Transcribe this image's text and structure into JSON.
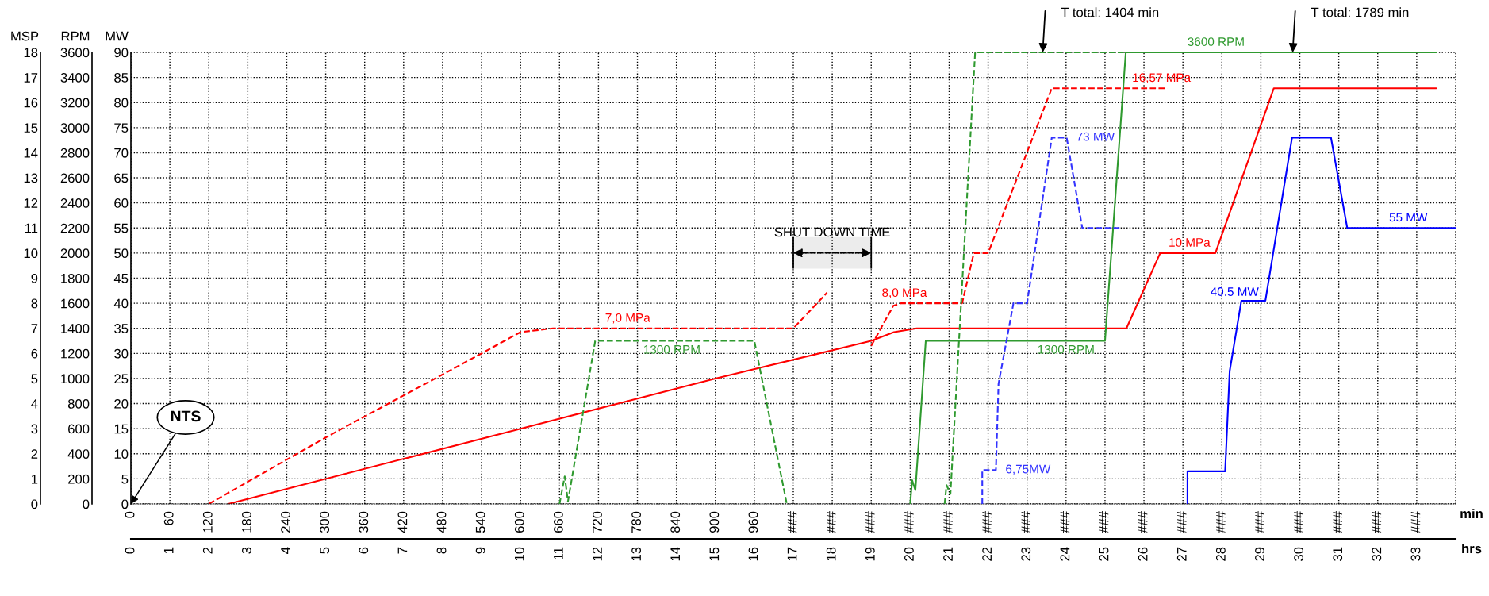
{
  "chart_data": {
    "type": "line",
    "xlabel": "min",
    "x2label": "hrs",
    "ylabel": "MSP",
    "y2label": "RPM",
    "y3label": "MW",
    "xlim": [
      0,
      2040
    ],
    "xticks": [
      0,
      60,
      120,
      180,
      240,
      300,
      360,
      420,
      480,
      540,
      600,
      660,
      720,
      780,
      840,
      900,
      960,
      {
        "value": 1020,
        "label": "###"
      },
      {
        "value": 1080,
        "label": "###"
      },
      {
        "value": 1140,
        "label": "###"
      },
      {
        "value": 1200,
        "label": "###"
      },
      {
        "value": 1260,
        "label": "###"
      },
      {
        "value": 1320,
        "label": "###"
      },
      {
        "value": 1380,
        "label": "###"
      },
      {
        "value": 1440,
        "label": "###"
      },
      {
        "value": 1500,
        "label": "###"
      },
      {
        "value": 1560,
        "label": "###"
      },
      {
        "value": 1620,
        "label": "###"
      },
      {
        "value": 1680,
        "label": "###"
      },
      {
        "value": 1740,
        "label": "###"
      },
      {
        "value": 1800,
        "label": "###"
      },
      {
        "value": 1860,
        "label": "###"
      },
      {
        "value": 1920,
        "label": "###"
      },
      {
        "value": 1980,
        "label": "###"
      },
      {
        "value": 2040,
        "label": null
      }
    ],
    "x2lim": [
      0,
      34
    ],
    "x2ticks": [
      0,
      1,
      2,
      3,
      4,
      5,
      6,
      7,
      8,
      9,
      10,
      11,
      12,
      13,
      14,
      15,
      16,
      17,
      18,
      19,
      20,
      21,
      22,
      23,
      24,
      25,
      26,
      27,
      28,
      29,
      30,
      31,
      32,
      33
    ],
    "ylim": [
      0,
      18
    ],
    "yticks": [
      0,
      1,
      2,
      3,
      4,
      5,
      6,
      7,
      8,
      9,
      10,
      11,
      12,
      13,
      14,
      15,
      16,
      17,
      18
    ],
    "y2lim": [
      0,
      3600
    ],
    "y2ticks": [
      0,
      200,
      400,
      600,
      800,
      1000,
      1200,
      1400,
      1600,
      1800,
      2000,
      2200,
      2400,
      2600,
      2800,
      3000,
      3200,
      3400,
      3600
    ],
    "y3lim": [
      0,
      90
    ],
    "y3ticks": [
      0,
      5,
      10,
      15,
      20,
      25,
      30,
      35,
      40,
      45,
      50,
      55,
      60,
      65,
      70,
      75,
      80,
      85,
      90
    ],
    "grid": true,
    "series": [
      {
        "color": "#ff0000",
        "line_style": "solid",
        "x": [
          150,
          600,
          900,
          1140,
          1175,
          1210,
          1533,
          1585,
          1630,
          1670,
          1760,
          2010
        ],
        "values": [
          0,
          3.0,
          5.0,
          6.5,
          6.85,
          7.0,
          7.0,
          10,
          10,
          10,
          16.57,
          16.57
        ],
        "value_labels": [
          null,
          null,
          null,
          null,
          null,
          null,
          null,
          null,
          "10 MPa",
          null,
          null,
          null
        ]
      },
      {
        "color": "#ff0000",
        "line_style": "dashed",
        "x": [
          120,
          300,
          540,
          600,
          650,
          765,
          1020,
          1072,
          1100,
          1140,
          1174,
          1186,
          1191,
          1280,
          1298,
          1320,
          1418,
          1587,
          1596
        ],
        "values": [
          0,
          2.65,
          6.0,
          6.85,
          7.0,
          7.0,
          7.0,
          8.42,
          null,
          6.3,
          7.9,
          8.0,
          8.0,
          8.0,
          10,
          10,
          16.57,
          16.57,
          16.57
        ],
        "value_labels": [
          null,
          null,
          null,
          null,
          null,
          "7,0 MPa",
          null,
          null,
          null,
          null,
          null,
          null,
          "8,0 MPa",
          null,
          null,
          null,
          null,
          "16,57 MPa",
          null
        ]
      },
      {
        "color": "#2f9a2f",
        "line_style": "solid",
        "axis": "y2",
        "x": [
          1200,
          1203,
          1208,
          1224,
          1440,
          1500,
          1532,
          1671,
          2010
        ],
        "values": [
          0,
          190,
          110,
          1300,
          1300,
          1300,
          3600,
          3600,
          3600
        ],
        "value_labels": [
          null,
          null,
          null,
          null,
          "1300 RPM",
          null,
          null,
          "3600 RPM",
          null
        ]
      },
      {
        "color": "#2f9a2f",
        "line_style": "dashed",
        "axis": "y2",
        "x": [
          660,
          668,
          673,
          715,
          833,
          960,
          1010,
          1100,
          1253,
          1256,
          1262,
          1300,
          1620
        ],
        "values": [
          0,
          220,
          20,
          1300,
          1300,
          1300,
          0,
          null,
          0,
          150,
          80,
          3600,
          3600
        ],
        "value_labels": [
          null,
          null,
          null,
          null,
          "1300 RPM",
          null,
          null,
          null,
          null,
          null,
          null,
          null,
          null
        ]
      },
      {
        "color": "#0000ff",
        "line_style": "solid",
        "axis": "y3",
        "x": [
          1627,
          1627,
          1685,
          1692,
          1710,
          1747,
          1788,
          1848,
          1873,
          1967,
          2040
        ],
        "values": [
          0,
          6.5,
          6.5,
          26.5,
          40.5,
          40.5,
          73,
          73,
          55,
          55,
          55
        ],
        "value_labels": [
          null,
          null,
          null,
          null,
          "40.5 MW",
          null,
          null,
          null,
          null,
          "55 MW",
          null
        ]
      },
      {
        "color": "#3333ff",
        "line_style": "dashed",
        "axis": "y3",
        "x": [
          1311,
          1311,
          1332,
          1336,
          1359,
          1380,
          1418,
          1441,
          1465,
          1523
        ],
        "values": [
          0,
          6.75,
          6.75,
          23.9,
          40,
          40,
          73,
          73,
          55,
          55
        ],
        "value_labels": [
          null,
          null,
          "6,75MW",
          null,
          null,
          null,
          null,
          "73 MW",
          null,
          null
        ]
      }
    ],
    "bands": [
      {
        "axis": "x",
        "from": 1020,
        "to": 1140,
        "label": "SHUT DOWN TIME"
      }
    ],
    "annotations": [
      "NTS",
      {
        "text": "T total: 1404 min",
        "x": 1404,
        "y": 18
      },
      {
        "text": "T total: 1789 min",
        "x": 1789,
        "y": 18
      }
    ]
  }
}
